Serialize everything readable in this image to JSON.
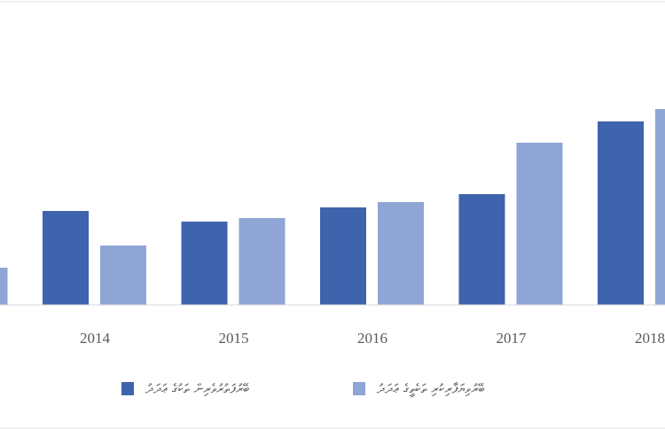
{
  "chart_data": {
    "type": "bar",
    "categories": [
      null,
      "2014",
      "2015",
      "2016",
      "2017",
      "2018"
    ],
    "series": [
      {
        "name": "ބޭރުފަތުރުވެރިން ތަކުގެ ޢަދަދު",
        "color": "#3f63ad",
        "values": [
          null,
          106,
          94,
          110,
          125,
          207
        ]
      },
      {
        "name": "ބޭރުވިޔަފާރިކުރި ތަކެތީގެ ޢަދަދު",
        "color": "#8fa5d6",
        "values": [
          42,
          67,
          98,
          116,
          183,
          221
        ]
      }
    ]
  }
}
